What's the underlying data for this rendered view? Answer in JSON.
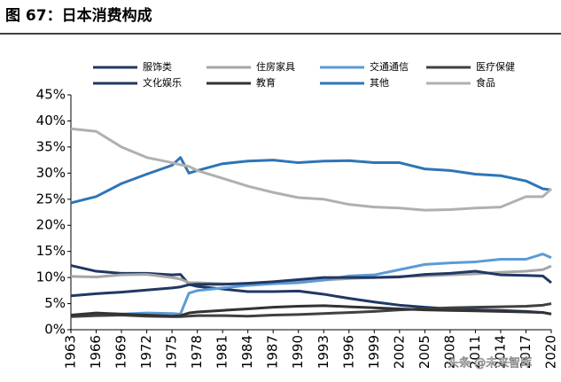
{
  "chart_data": {
    "type": "line",
    "title": "图 67：日本消费构成",
    "watermark": "头条 @未来智库",
    "x": [
      1963,
      1966,
      1969,
      1972,
      1975,
      1976,
      1977,
      1978,
      1981,
      1984,
      1987,
      1990,
      1993,
      1996,
      1999,
      2002,
      2005,
      2008,
      2011,
      2014,
      2017,
      2019,
      2020
    ],
    "xlim": [
      1963,
      2020
    ],
    "xticks": [
      1963,
      1966,
      1969,
      1972,
      1975,
      1978,
      1981,
      1984,
      1987,
      1990,
      1993,
      1996,
      1999,
      2002,
      2005,
      2008,
      2011,
      2014,
      2017,
      2020
    ],
    "ylim": [
      0,
      45
    ],
    "yticks": [
      {
        "value": 0,
        "label": "0%"
      },
      {
        "value": 5,
        "label": "5%"
      },
      {
        "value": 10,
        "label": "10%"
      },
      {
        "value": 15,
        "label": "15%"
      },
      {
        "value": 20,
        "label": "20%"
      },
      {
        "value": 25,
        "label": "25%"
      },
      {
        "value": 30,
        "label": "30%"
      },
      {
        "value": 35,
        "label": "35%"
      },
      {
        "value": 40,
        "label": "40%"
      },
      {
        "value": 45,
        "label": "45%"
      }
    ],
    "series": [
      {
        "name": "服饰类",
        "color": "#1f3864",
        "values": [
          12.3,
          11.2,
          10.8,
          10.8,
          10.5,
          10.6,
          8.7,
          8.3,
          7.8,
          7.3,
          7.3,
          7.4,
          6.8,
          6.0,
          5.3,
          4.7,
          4.3,
          4.0,
          3.8,
          3.7,
          3.5,
          3.3,
          3.0
        ]
      },
      {
        "name": "住房家具",
        "color": "#a6a6a6",
        "values": [
          10.2,
          10.1,
          10.5,
          10.6,
          10.0,
          9.7,
          9.0,
          9.0,
          8.8,
          8.7,
          9.0,
          9.2,
          9.5,
          9.8,
          10.0,
          10.2,
          10.3,
          10.5,
          10.7,
          11.0,
          11.2,
          11.5,
          12.2
        ]
      },
      {
        "name": "交通通信",
        "color": "#5b9bd5",
        "values": [
          2.5,
          2.8,
          3.0,
          3.2,
          3.1,
          3.0,
          7.0,
          7.5,
          8.0,
          8.5,
          8.8,
          9.0,
          9.5,
          10.3,
          10.5,
          11.5,
          12.5,
          12.8,
          13.0,
          13.5,
          13.5,
          14.5,
          13.8
        ]
      },
      {
        "name": "医疗保健",
        "color": "#404040",
        "values": [
          2.5,
          2.7,
          2.8,
          2.6,
          2.5,
          2.5,
          2.6,
          2.7,
          2.7,
          2.6,
          2.8,
          2.9,
          3.1,
          3.3,
          3.5,
          3.8,
          4.0,
          4.2,
          4.3,
          4.4,
          4.5,
          4.7,
          5.0
        ]
      },
      {
        "name": "文化娱乐",
        "color": "#203864",
        "values": [
          6.5,
          6.9,
          7.2,
          7.6,
          8.0,
          8.2,
          8.6,
          8.7,
          8.7,
          8.9,
          9.2,
          9.6,
          10.0,
          10.0,
          10.0,
          10.1,
          10.6,
          10.8,
          11.2,
          10.5,
          10.4,
          10.3,
          9.0
        ]
      },
      {
        "name": "教育",
        "color": "#333333",
        "values": [
          2.8,
          3.2,
          3.0,
          2.8,
          2.6,
          2.7,
          3.2,
          3.4,
          3.7,
          4.0,
          4.3,
          4.5,
          4.6,
          4.4,
          4.2,
          4.0,
          3.8,
          3.7,
          3.6,
          3.5,
          3.4,
          3.3,
          3.0
        ]
      },
      {
        "name": "其他",
        "color": "#2e75b6",
        "values": [
          24.3,
          25.5,
          28.0,
          29.8,
          31.5,
          33.0,
          30.0,
          30.5,
          31.8,
          32.3,
          32.5,
          32.0,
          32.3,
          32.4,
          32.0,
          32.0,
          30.8,
          30.5,
          29.8,
          29.5,
          28.5,
          27.0,
          26.8
        ]
      },
      {
        "name": "食品",
        "color": "#b0b0b0",
        "values": [
          38.5,
          38.0,
          35.0,
          33.0,
          32.0,
          31.6,
          31.3,
          30.5,
          29.0,
          27.5,
          26.3,
          25.3,
          25.0,
          24.0,
          23.5,
          23.3,
          22.9,
          23.0,
          23.3,
          23.5,
          25.5,
          25.5,
          27.0
        ]
      }
    ]
  }
}
